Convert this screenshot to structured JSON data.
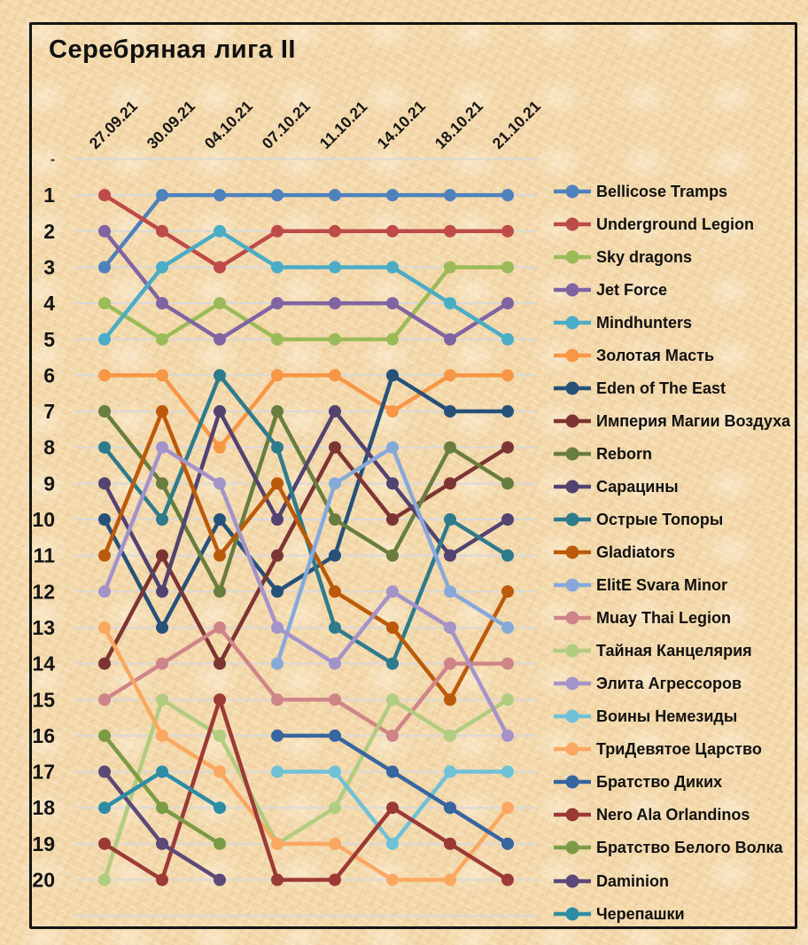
{
  "title": "Серебряная лига II",
  "colors": {
    "background": "#f4d9ac",
    "frame": "#141414",
    "gridline": "#d9d9d9",
    "text": "#141414"
  },
  "y_axis": {
    "top_tick_label": "-",
    "min_rank": 1,
    "max_rank": 20,
    "inverted": true
  },
  "chart_data": {
    "type": "line",
    "title": "Серебряная лига II",
    "xlabel": "",
    "ylabel": "",
    "grid": true,
    "legend_position": "right",
    "x": [
      "27.09.21",
      "30.09.21",
      "04.10.21",
      "07.10.21",
      "11.10.21",
      "14.10.21",
      "18.10.21",
      "21.10.21"
    ],
    "y_ticks": [
      1,
      2,
      3,
      4,
      5,
      6,
      7,
      8,
      9,
      10,
      11,
      12,
      13,
      14,
      15,
      16,
      17,
      18,
      19,
      20
    ],
    "series": [
      {
        "name": "Bellicose Tramps",
        "color": "#4F81BD",
        "ranks": [
          3,
          1,
          1,
          1,
          1,
          1,
          1,
          1
        ]
      },
      {
        "name": "Underground Legion",
        "color": "#BE4B48",
        "ranks": [
          1,
          2,
          3,
          2,
          2,
          2,
          2,
          2
        ]
      },
      {
        "name": "Sky dragons",
        "color": "#9BBB59",
        "ranks": [
          4,
          5,
          4,
          5,
          5,
          5,
          3,
          3
        ]
      },
      {
        "name": "Jet Force",
        "color": "#8064A2",
        "ranks": [
          2,
          4,
          5,
          4,
          4,
          4,
          5,
          4
        ]
      },
      {
        "name": "Mindhunters",
        "color": "#4BACC6",
        "ranks": [
          5,
          3,
          2,
          3,
          3,
          3,
          4,
          5
        ]
      },
      {
        "name": "Золотая Масть",
        "color": "#F79646",
        "ranks": [
          6,
          6,
          8,
          6,
          6,
          7,
          6,
          6
        ]
      },
      {
        "name": "Eden of The East",
        "color": "#265179",
        "ranks": [
          10,
          13,
          10,
          12,
          11,
          6,
          7,
          7
        ]
      },
      {
        "name": "Империя Магии Воздуха",
        "color": "#7D3533",
        "ranks": [
          14,
          11,
          14,
          11,
          8,
          10,
          9,
          8
        ]
      },
      {
        "name": "Reborn",
        "color": "#697E3E",
        "ranks": [
          7,
          9,
          12,
          7,
          10,
          11,
          8,
          9
        ]
      },
      {
        "name": "Сарацины",
        "color": "#524370",
        "ranks": [
          9,
          12,
          7,
          10,
          7,
          9,
          11,
          10
        ]
      },
      {
        "name": "Острые Топоры",
        "color": "#2E7B8C",
        "ranks": [
          8,
          10,
          6,
          8,
          13,
          14,
          10,
          11
        ]
      },
      {
        "name": "Gladiators",
        "color": "#BC5A0B",
        "ranks": [
          11,
          7,
          11,
          9,
          12,
          13,
          15,
          12
        ]
      },
      {
        "name": "ElitE Svara Minor",
        "color": "#86A9DA",
        "ranks": [
          null,
          null,
          null,
          14,
          9,
          8,
          12,
          13
        ]
      },
      {
        "name": "Muay Thai Legion",
        "color": "#CF8588",
        "ranks": [
          15,
          14,
          13,
          15,
          15,
          16,
          14,
          14
        ]
      },
      {
        "name": "Тайная Канцелярия",
        "color": "#B2CC80",
        "ranks": [
          20,
          15,
          16,
          19,
          18,
          15,
          16,
          15
        ]
      },
      {
        "name": "Элита Агрессоров",
        "color": "#A493C8",
        "ranks": [
          12,
          8,
          9,
          13,
          14,
          12,
          13,
          16
        ]
      },
      {
        "name": "Воины Немезиды",
        "color": "#6FC1D8",
        "ranks": [
          null,
          null,
          null,
          17,
          17,
          19,
          17,
          17
        ]
      },
      {
        "name": "ТриДевятое Царство",
        "color": "#FAA861",
        "ranks": [
          13,
          16,
          17,
          19,
          19,
          20,
          20,
          18
        ]
      },
      {
        "name": "Братство Диких",
        "color": "#3765A0",
        "ranks": [
          null,
          null,
          null,
          16,
          16,
          17,
          18,
          19
        ]
      },
      {
        "name": "Nero Ala Orlandinos",
        "color": "#9C3A36",
        "ranks": [
          19,
          20,
          15,
          20,
          20,
          18,
          19,
          20
        ]
      },
      {
        "name": "Братство Белого Волка",
        "color": "#7B9B44",
        "ranks": [
          16,
          18,
          19,
          null,
          null,
          null,
          null,
          null
        ]
      },
      {
        "name": "Daminion",
        "color": "#5D4878",
        "ranks": [
          17,
          19,
          20,
          null,
          null,
          null,
          null,
          null
        ]
      },
      {
        "name": "Черепашки",
        "color": "#2E8DA5",
        "ranks": [
          18,
          17,
          18,
          null,
          null,
          null,
          null,
          null
        ]
      }
    ]
  }
}
